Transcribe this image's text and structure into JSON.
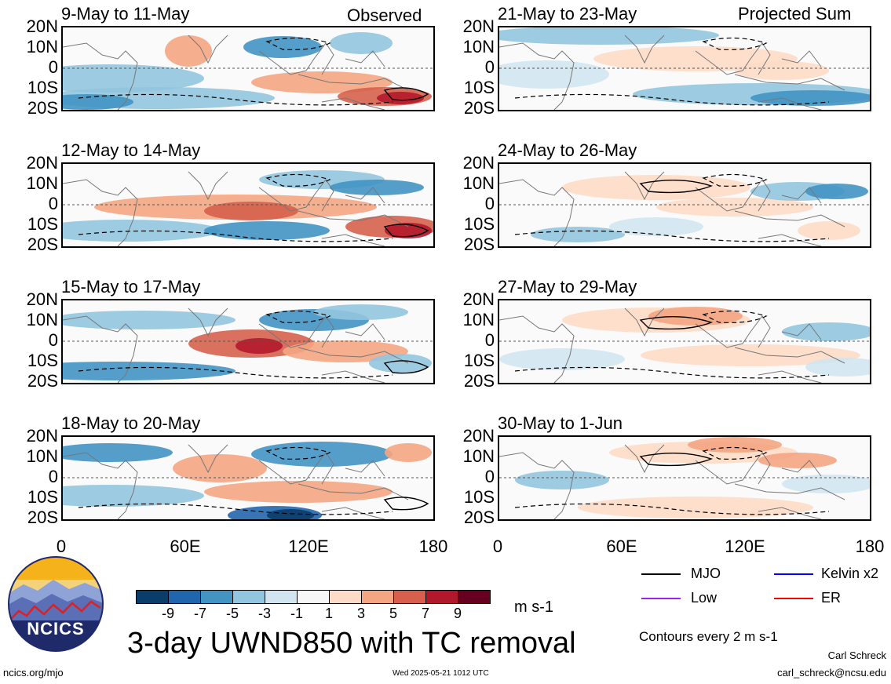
{
  "header": {
    "observed_label": "Observed",
    "projected_label": "Projected Sum"
  },
  "panels": [
    {
      "title": "9-May to 11-May"
    },
    {
      "title": "12-May to 14-May"
    },
    {
      "title": "15-May to 17-May"
    },
    {
      "title": "18-May to 20-May"
    },
    {
      "title": "21-May to 23-May"
    },
    {
      "title": "24-May to 26-May"
    },
    {
      "title": "27-May to 29-May"
    },
    {
      "title": "30-May to 1-Jun"
    }
  ],
  "lat_labels": [
    "20N",
    "10N",
    "0",
    "10S",
    "20S"
  ],
  "lon_labels": [
    "0",
    "60E",
    "120E",
    "180"
  ],
  "colorbar": {
    "colors": [
      "#0b3d6b",
      "#2166ac",
      "#4393c3",
      "#92c5de",
      "#d1e5f0",
      "#f7f7f7",
      "#fddbc7",
      "#f4a582",
      "#d6604d",
      "#b2182b",
      "#67001f"
    ],
    "ticks": [
      "-9",
      "-7",
      "-5",
      "-3",
      "-1",
      "1",
      "3",
      "5",
      "7",
      "9"
    ],
    "units": "m s-1"
  },
  "legend": {
    "mjo": {
      "label": "MJO",
      "color": "#000000"
    },
    "kelvin": {
      "label": "Kelvin x2",
      "color": "#0000ff"
    },
    "low": {
      "label": "Low",
      "color": "#a020f0"
    },
    "er": {
      "label": "ER",
      "color": "#ff0000"
    },
    "contours_note": "Contours every 2 m s-1"
  },
  "main_title": "3-day UWND850 with TC removal",
  "logo_text": "NCICS",
  "footer": {
    "url": "ncics.org/mjo",
    "timestamp": "Wed 2025-05-21 1012 UTC",
    "author": "Carl Schreck",
    "email": "carl_schreck@ncsu.edu"
  }
}
